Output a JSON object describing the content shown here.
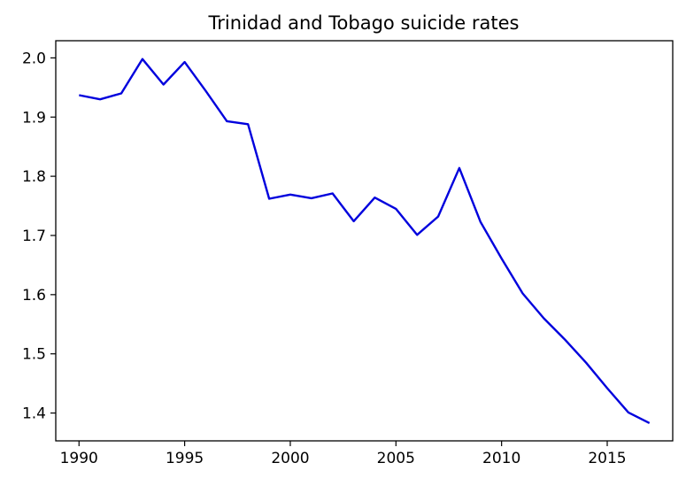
{
  "chart_data": {
    "type": "line",
    "title": "Trinidad and Tobago suicide rates",
    "xlabel": "",
    "ylabel": "",
    "xlim": [
      1988.9,
      2018.1
    ],
    "ylim": [
      1.353,
      2.029
    ],
    "x_ticks": [
      1990,
      1995,
      2000,
      2005,
      2010,
      2015
    ],
    "y_ticks": [
      1.4,
      1.5,
      1.6,
      1.7,
      1.8,
      1.9,
      2.0
    ],
    "y_tick_labels": [
      "1.4",
      "1.5",
      "1.6",
      "1.7",
      "1.8",
      "1.9",
      "2.0"
    ],
    "grid": false,
    "line_color": "#0000dd",
    "series": [
      {
        "x": [
          1990,
          1991,
          1992,
          1993,
          1994,
          1995,
          1996,
          1997,
          1998,
          1999,
          2000,
          2001,
          2002,
          2003,
          2004,
          2005,
          2006,
          2007,
          2008,
          2009,
          2010,
          2011,
          2012,
          2013,
          2014,
          2015,
          2016,
          2017
        ],
        "values": [
          1.937,
          1.93,
          1.94,
          1.998,
          1.955,
          1.993,
          1.944,
          1.893,
          1.888,
          1.762,
          1.769,
          1.763,
          1.771,
          1.724,
          1.764,
          1.745,
          1.701,
          1.732,
          1.814,
          1.723,
          1.661,
          1.602,
          1.56,
          1.524,
          1.485,
          1.442,
          1.401,
          1.383
        ]
      }
    ]
  }
}
